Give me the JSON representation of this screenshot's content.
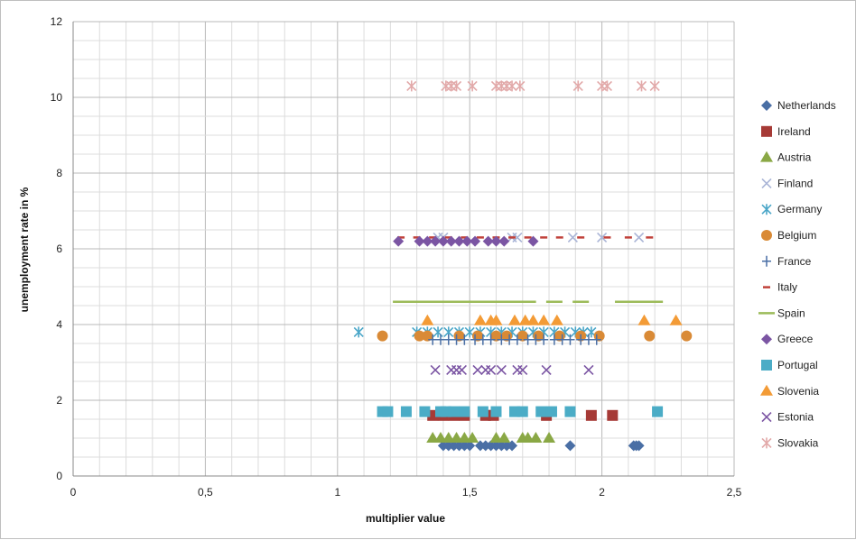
{
  "chart_data": {
    "type": "scatter",
    "xlabel": "multiplier value",
    "ylabel": "unemployment rate in %",
    "xlim": [
      0,
      2.5
    ],
    "ylim": [
      0,
      12
    ],
    "x_ticks": [
      "0",
      "0,5",
      "1",
      "1,5",
      "2",
      "2,5"
    ],
    "y_ticks": [
      "0",
      "2",
      "4",
      "6",
      "8",
      "10",
      "12"
    ],
    "grid": true,
    "legend_position": "right",
    "series": [
      {
        "name": "Netherlands",
        "marker": "diamond",
        "color": "#4a6fa5",
        "y": 0.8,
        "x": [
          1.4,
          1.42,
          1.44,
          1.46,
          1.48,
          1.5,
          1.54,
          1.56,
          1.58,
          1.6,
          1.62,
          1.64,
          1.66,
          1.88,
          2.12,
          2.13,
          2.14
        ]
      },
      {
        "name": "Ireland",
        "marker": "square",
        "color": "#a63a36",
        "y": 1.6,
        "x": [
          1.36,
          1.4,
          1.44,
          1.48,
          1.56,
          1.59,
          1.79,
          1.96,
          2.04
        ]
      },
      {
        "name": "Austria",
        "marker": "triangle",
        "color": "#8aa845",
        "y": 1.0,
        "x": [
          1.36,
          1.39,
          1.42,
          1.45,
          1.48,
          1.51,
          1.6,
          1.63,
          1.7,
          1.72,
          1.75,
          1.8
        ]
      },
      {
        "name": "Finland",
        "marker": "x",
        "color": "#a9b4d6",
        "y": 6.3,
        "x": [
          1.38,
          1.4,
          1.66,
          1.68,
          1.89,
          2.0,
          2.14
        ]
      },
      {
        "name": "Germany",
        "marker": "asterisk",
        "color": "#4aa6c8",
        "y": 3.8,
        "x": [
          1.08,
          1.3,
          1.34,
          1.38,
          1.42,
          1.46,
          1.5,
          1.54,
          1.58,
          1.62,
          1.66,
          1.7,
          1.74,
          1.78,
          1.82,
          1.86,
          1.9,
          1.93,
          1.96
        ]
      },
      {
        "name": "Belgium",
        "marker": "circle",
        "color": "#d98a36",
        "y": 3.7,
        "x": [
          1.17,
          1.31,
          1.34,
          1.46,
          1.53,
          1.6,
          1.64,
          1.7,
          1.76,
          1.84,
          1.92,
          1.99,
          2.18,
          2.32
        ]
      },
      {
        "name": "France",
        "marker": "plus",
        "color": "#4a6fa5",
        "y": 3.6,
        "x": [
          1.36,
          1.39,
          1.42,
          1.45,
          1.48,
          1.52,
          1.55,
          1.58,
          1.62,
          1.65,
          1.68,
          1.72,
          1.75,
          1.78,
          1.82,
          1.85,
          1.88,
          1.92,
          1.95,
          1.98
        ]
      },
      {
        "name": "Italy",
        "marker": "dash",
        "color": "#c0413a",
        "y": 6.3,
        "x": [
          1.24,
          1.3,
          1.36,
          1.42,
          1.48,
          1.54,
          1.6,
          1.66,
          1.72,
          1.78,
          1.84,
          1.92,
          2.02,
          2.1,
          2.18
        ]
      },
      {
        "name": "Spain",
        "marker": "hline",
        "color": "#9cbb59",
        "y": 4.6,
        "x": [
          1.24,
          1.3,
          1.36,
          1.42,
          1.48,
          1.54,
          1.6,
          1.66,
          1.72,
          1.82,
          1.92,
          2.08,
          2.14,
          2.2
        ]
      },
      {
        "name": "Greece",
        "marker": "diamond",
        "color": "#7b55a3",
        "y": 6.2,
        "x": [
          1.23,
          1.31,
          1.34,
          1.37,
          1.4,
          1.43,
          1.46,
          1.49,
          1.52,
          1.57,
          1.6,
          1.63,
          1.74
        ]
      },
      {
        "name": "Portugal",
        "marker": "square",
        "color": "#4bacc6",
        "y": 1.7,
        "x": [
          1.17,
          1.19,
          1.26,
          1.33,
          1.39,
          1.41,
          1.44,
          1.48,
          1.55,
          1.6,
          1.67,
          1.7,
          1.77,
          1.81,
          1.88,
          2.21
        ]
      },
      {
        "name": "Slovenia",
        "marker": "triangle",
        "color": "#f39b36",
        "y": 4.1,
        "x": [
          1.34,
          1.54,
          1.58,
          1.6,
          1.67,
          1.71,
          1.74,
          1.78,
          1.83,
          2.16,
          2.28
        ]
      },
      {
        "name": "Estonia",
        "marker": "x",
        "color": "#7b55a3",
        "y": 2.8,
        "x": [
          1.37,
          1.43,
          1.45,
          1.47,
          1.53,
          1.56,
          1.58,
          1.62,
          1.68,
          1.7,
          1.79,
          1.95
        ]
      },
      {
        "name": "Slovakia",
        "marker": "asterisk",
        "color": "#e2a9a9",
        "y": 10.3,
        "x": [
          1.28,
          1.41,
          1.43,
          1.45,
          1.51,
          1.6,
          1.62,
          1.64,
          1.66,
          1.69,
          1.91,
          2.0,
          2.02,
          2.15,
          2.2
        ]
      }
    ]
  }
}
